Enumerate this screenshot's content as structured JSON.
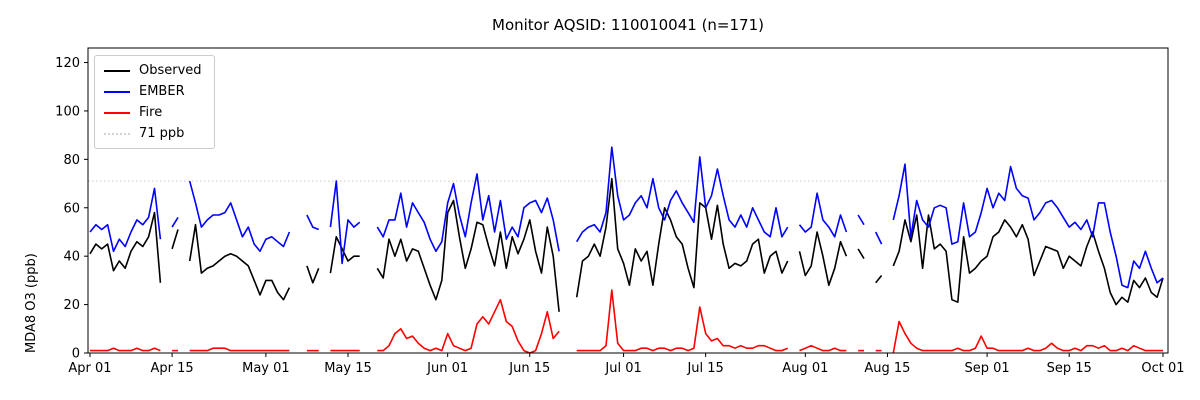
{
  "chart_data": {
    "type": "line",
    "title": "Monitor AQSID: 110010041 (n=171)",
    "ylabel": "MDA8 O3 (ppb)",
    "xlabel": "",
    "ylim": [
      0,
      126
    ],
    "yticks": [
      0,
      20,
      40,
      60,
      80,
      100,
      120
    ],
    "x_tick_days": [
      0,
      14,
      30,
      44,
      61,
      75,
      91,
      105,
      122,
      136,
      153,
      167,
      183
    ],
    "x_tick_labels": [
      "Apr 01",
      "Apr 15",
      "May 01",
      "May 15",
      "Jun 01",
      "Jun 15",
      "Jul 01",
      "Jul 15",
      "Aug 01",
      "Aug 15",
      "Sep 01",
      "Sep 15",
      "Oct 01"
    ],
    "x_range_days": 183,
    "grid": false,
    "background": "#ffffff",
    "threshold": {
      "value": 71,
      "label": "71 ppb",
      "color": "#d3d3d3",
      "style": "dotted"
    },
    "legend": {
      "position": "upper left",
      "entries": [
        {
          "label": "Observed",
          "color": "#000000",
          "dotted": false
        },
        {
          "label": "EMBER",
          "color": "#0000ff",
          "dotted": false
        },
        {
          "label": "Fire",
          "color": "#ff0000",
          "dotted": false
        },
        {
          "label": "71 ppb",
          "color": "#d3d3d3",
          "dotted": true
        }
      ]
    },
    "series": [
      {
        "name": "Observed",
        "color": "#000000",
        "values": [
          41,
          45,
          43,
          45,
          34,
          38,
          35,
          42,
          46,
          44,
          48,
          58,
          29,
          null,
          43,
          51,
          null,
          38,
          53,
          33,
          35,
          36,
          38,
          40,
          41,
          40,
          38,
          36,
          30,
          24,
          30,
          30,
          25,
          22,
          27,
          null,
          null,
          36,
          29,
          35,
          null,
          33,
          48,
          43,
          38,
          40,
          40,
          null,
          null,
          35,
          31,
          47,
          40,
          47,
          38,
          43,
          42,
          35,
          28,
          22,
          30,
          58,
          63,
          48,
          35,
          43,
          54,
          53,
          44,
          36,
          50,
          35,
          48,
          41,
          47,
          55,
          42,
          33,
          52,
          40,
          17,
          null,
          null,
          23,
          38,
          40,
          45,
          40,
          52,
          72,
          43,
          37,
          28,
          43,
          38,
          42,
          28,
          45,
          60,
          55,
          48,
          45,
          35,
          27,
          62,
          60,
          47,
          61,
          45,
          35,
          37,
          36,
          38,
          45,
          47,
          33,
          40,
          42,
          33,
          38,
          null,
          42,
          32,
          36,
          50,
          40,
          28,
          35,
          46,
          40,
          null,
          43,
          39,
          null,
          29,
          32,
          null,
          36,
          42,
          55,
          46,
          57,
          35,
          57,
          43,
          45,
          42,
          22,
          21,
          48,
          33,
          35,
          38,
          40,
          48,
          50,
          55,
          52,
          48,
          53,
          47,
          32,
          38,
          44,
          43,
          42,
          35,
          40,
          38,
          36,
          44,
          50,
          42,
          35,
          25,
          20,
          23,
          21,
          30,
          27,
          31,
          25,
          23,
          31
        ]
      },
      {
        "name": "EMBER",
        "color": "#0000ff",
        "values": [
          50,
          53,
          51,
          53,
          42,
          47,
          44,
          50,
          55,
          53,
          56,
          68,
          47,
          null,
          52,
          56,
          null,
          71,
          62,
          52,
          55,
          57,
          57,
          58,
          62,
          55,
          48,
          52,
          45,
          42,
          47,
          48,
          46,
          44,
          50,
          null,
          null,
          57,
          52,
          51,
          null,
          52,
          71,
          37,
          55,
          52,
          54,
          null,
          null,
          52,
          48,
          55,
          55,
          66,
          52,
          62,
          58,
          54,
          47,
          42,
          46,
          62,
          70,
          57,
          48,
          62,
          74,
          55,
          65,
          50,
          63,
          47,
          52,
          48,
          60,
          62,
          63,
          58,
          64,
          55,
          42,
          null,
          null,
          46,
          50,
          52,
          53,
          50,
          58,
          85,
          65,
          55,
          57,
          62,
          65,
          60,
          72,
          60,
          55,
          63,
          67,
          62,
          58,
          54,
          81,
          60,
          65,
          76,
          65,
          55,
          52,
          57,
          52,
          60,
          55,
          50,
          48,
          60,
          48,
          52,
          null,
          53,
          50,
          52,
          66,
          55,
          52,
          48,
          57,
          50,
          null,
          57,
          53,
          null,
          50,
          45,
          null,
          55,
          65,
          78,
          48,
          63,
          55,
          52,
          60,
          61,
          60,
          45,
          46,
          62,
          48,
          50,
          58,
          68,
          60,
          66,
          63,
          77,
          68,
          65,
          64,
          55,
          58,
          62,
          63,
          60,
          56,
          52,
          54,
          51,
          55,
          48,
          62,
          62,
          50,
          40,
          28,
          27,
          38,
          35,
          42,
          35,
          29,
          31
        ]
      },
      {
        "name": "Fire",
        "color": "#ff0000",
        "values": [
          1,
          1,
          1,
          1,
          2,
          1,
          1,
          1,
          2,
          1,
          1,
          2,
          1,
          null,
          1,
          1,
          null,
          1,
          1,
          1,
          1,
          2,
          2,
          2,
          1,
          1,
          1,
          1,
          1,
          1,
          1,
          1,
          1,
          1,
          1,
          null,
          null,
          1,
          1,
          1,
          null,
          1,
          1,
          1,
          1,
          1,
          1,
          null,
          null,
          1,
          1,
          3,
          8,
          10,
          6,
          7,
          4,
          2,
          1,
          2,
          1,
          8,
          3,
          2,
          1,
          2,
          12,
          15,
          12,
          17,
          22,
          13,
          11,
          5,
          1,
          0,
          1,
          8,
          17,
          6,
          9,
          null,
          null,
          1,
          1,
          1,
          1,
          1,
          3,
          26,
          4,
          1,
          1,
          1,
          2,
          2,
          1,
          2,
          2,
          1,
          2,
          2,
          1,
          2,
          19,
          8,
          5,
          6,
          3,
          3,
          2,
          3,
          2,
          2,
          3,
          3,
          2,
          1,
          1,
          2,
          null,
          1,
          2,
          3,
          2,
          1,
          1,
          2,
          1,
          1,
          null,
          1,
          1,
          null,
          1,
          1,
          null,
          0,
          13,
          8,
          4,
          2,
          1,
          1,
          1,
          1,
          1,
          1,
          2,
          1,
          1,
          2,
          7,
          2,
          2,
          1,
          1,
          1,
          1,
          1,
          2,
          1,
          1,
          2,
          4,
          2,
          1,
          1,
          2,
          1,
          3,
          3,
          2,
          3,
          1,
          1,
          2,
          1,
          3,
          2,
          1,
          1,
          1,
          1
        ]
      }
    ]
  }
}
